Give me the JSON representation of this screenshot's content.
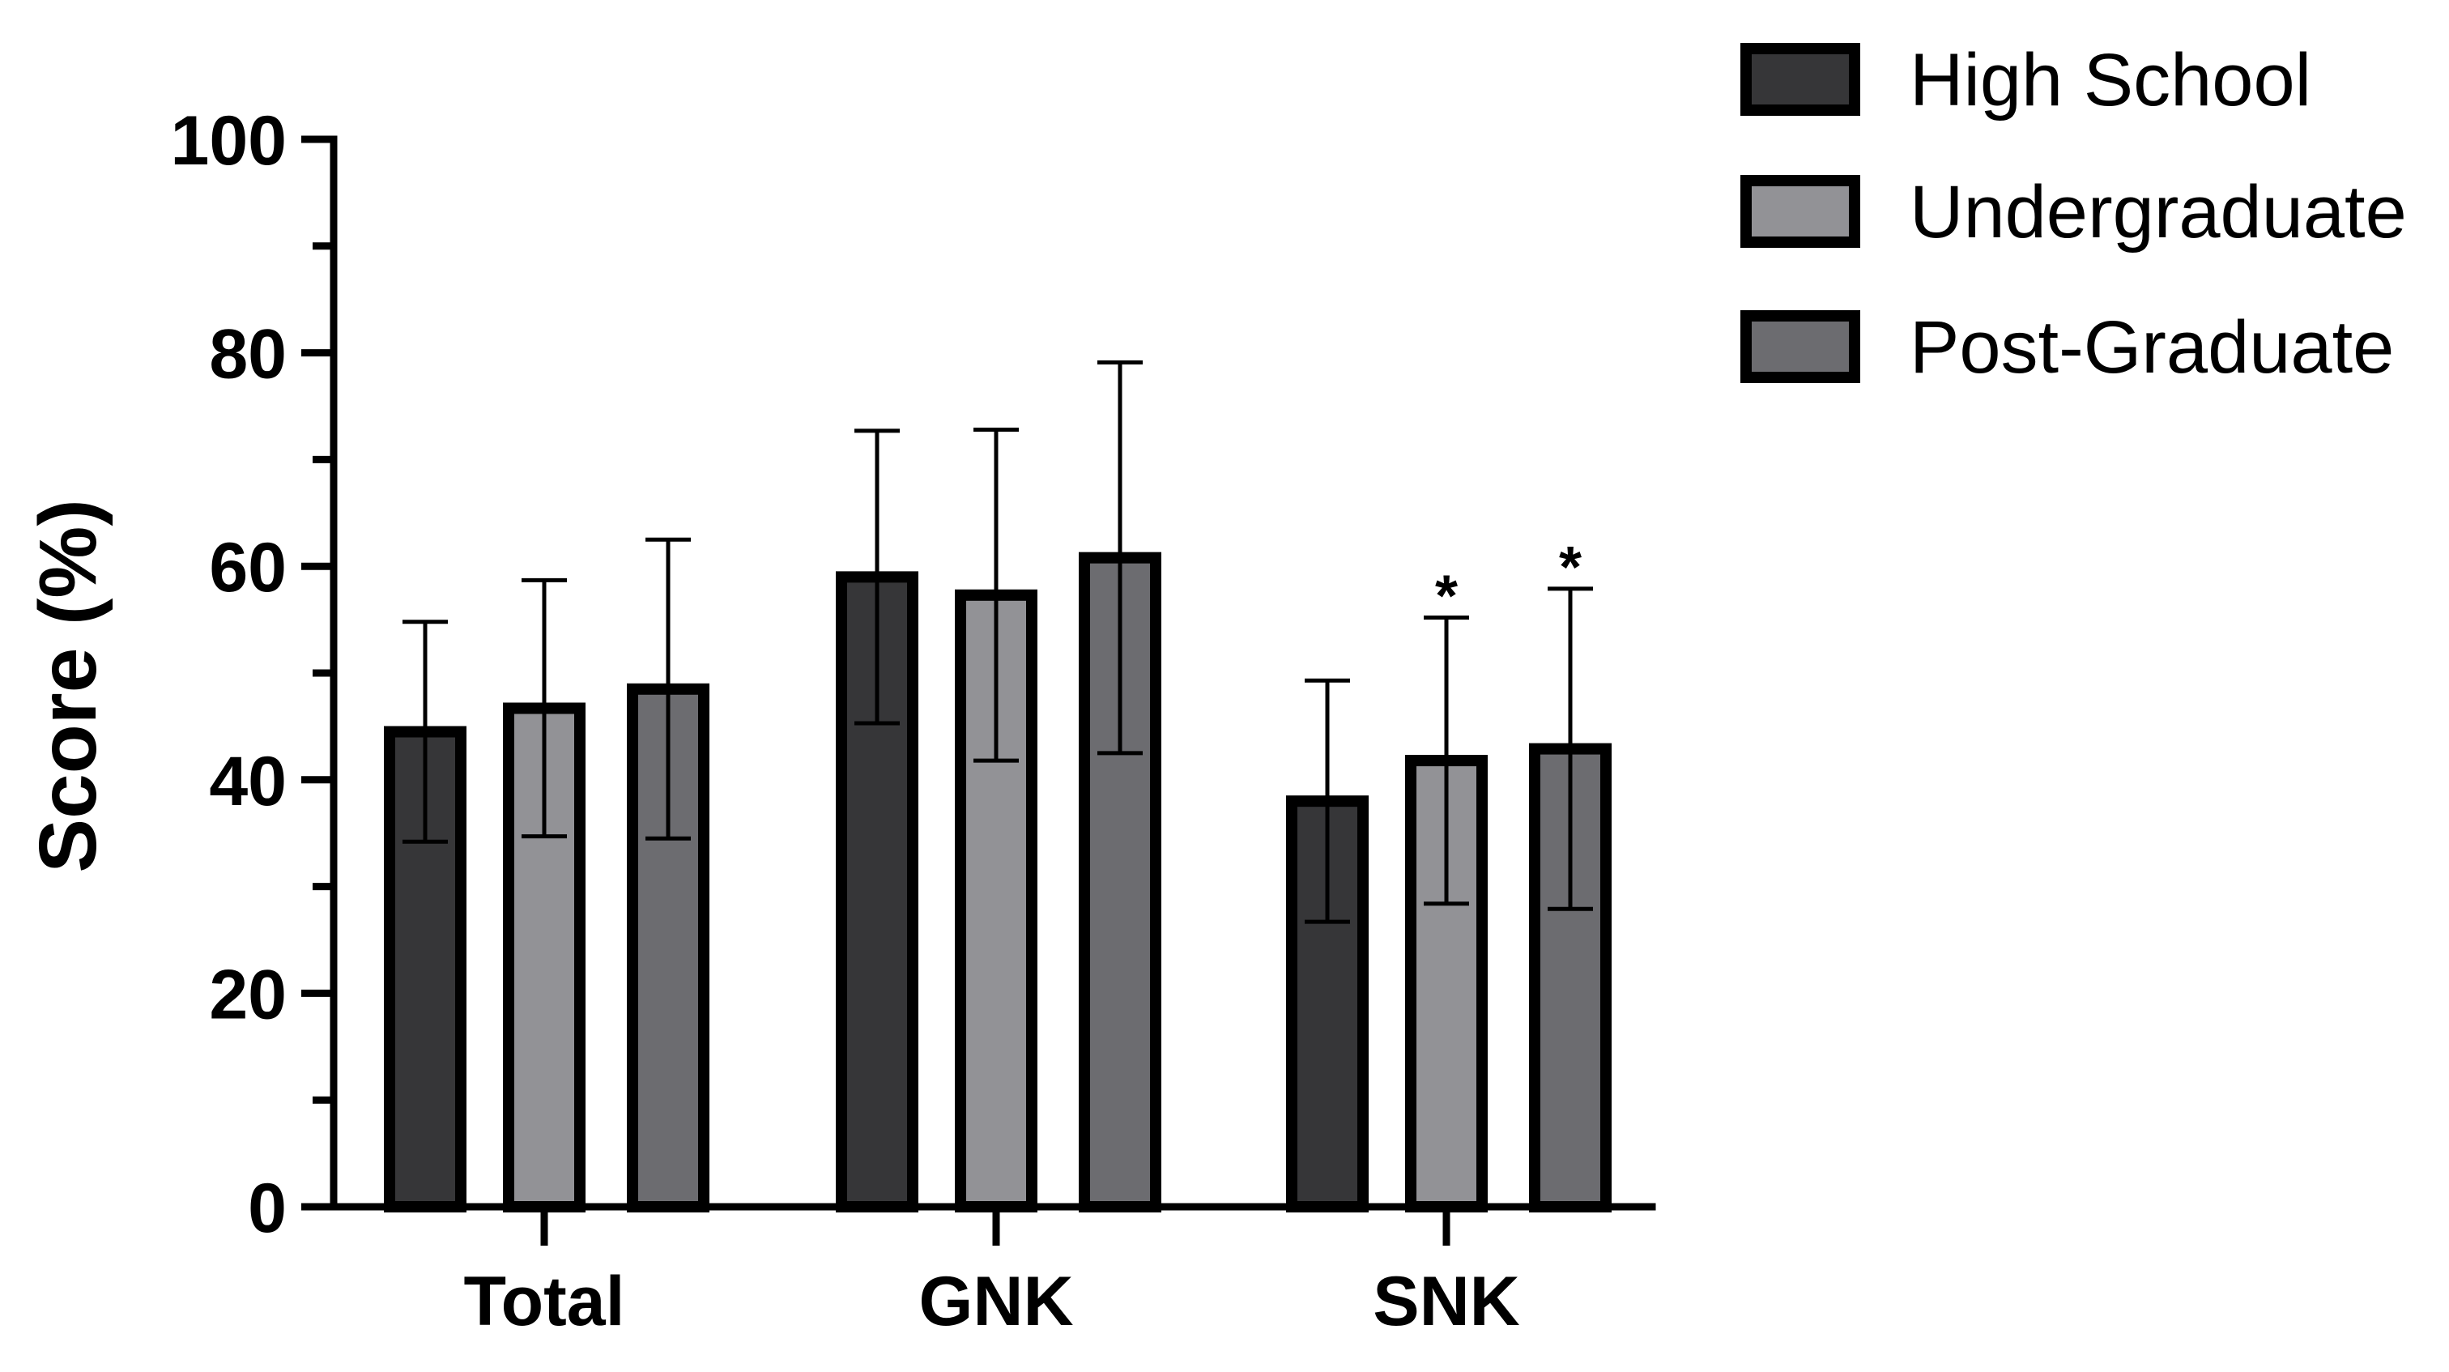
{
  "chart_data": {
    "type": "bar",
    "title": "",
    "xlabel": "",
    "ylabel": "Score (%)",
    "ylim": [
      0,
      100
    ],
    "yticks": [
      0,
      20,
      40,
      60,
      80,
      100
    ],
    "grid": false,
    "legend_position": "top-right",
    "categories": [
      "Total",
      "GNK",
      "SNK"
    ],
    "series": [
      {
        "name": "High School",
        "color": "#363638",
        "values": [
          44.5,
          59.0,
          38.0
        ],
        "error": [
          10.3,
          13.7,
          11.3
        ],
        "significance": [
          "",
          "",
          ""
        ]
      },
      {
        "name": "Undergraduate",
        "color": "#929296",
        "values": [
          46.7,
          57.3,
          41.8
        ],
        "error": [
          12.0,
          15.5,
          13.4
        ],
        "significance": [
          "",
          "",
          "*"
        ]
      },
      {
        "name": "Post-Graduate",
        "color": "#6c6c70",
        "values": [
          48.5,
          60.8,
          42.9
        ],
        "error": [
          14.0,
          18.3,
          15.0
        ],
        "significance": [
          "",
          "",
          "*"
        ]
      }
    ]
  }
}
